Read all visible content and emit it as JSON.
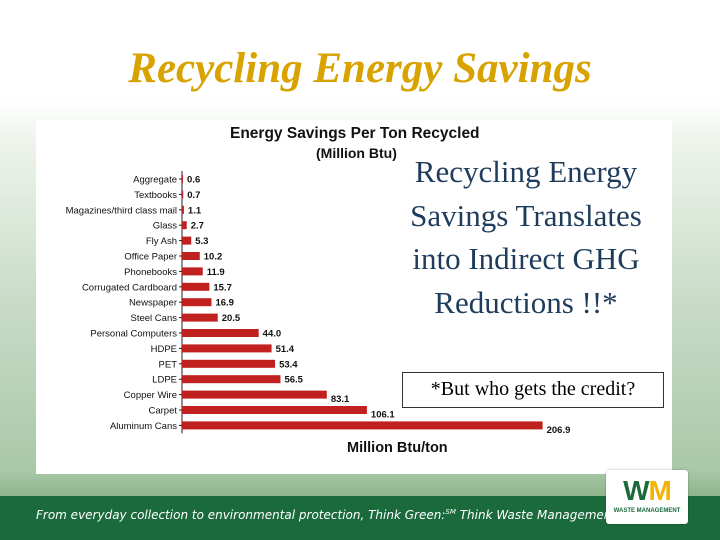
{
  "slide": {
    "title": "Recycling Energy Savings",
    "callout": "Recycling Energy Savings Translates into Indirect GHG Reductions !!*",
    "credit_note": "*But who gets the credit?",
    "footer_tagline_pre": "From everyday collection to environmental protection, Think Green:",
    "footer_tagline_sup": "SM",
    "footer_tagline_post": " Think Waste Management.",
    "logo_letters": "WM",
    "logo_subtext": "WASTE MANAGEMENT",
    "colors": {
      "title": "#d8a300",
      "callout": "#1f3c5c",
      "bar": "#c0211f",
      "footer": "#1a6a3c",
      "logo_w": "#1a6a3c",
      "logo_m": "#f2b400"
    }
  },
  "chart_data": {
    "type": "bar",
    "orientation": "horizontal",
    "title": "Energy Savings Per Ton Recycled",
    "subtitle": "(Million Btu)",
    "xlabel": "Million Btu/ton",
    "xlim": [
      0,
      210
    ],
    "categories": [
      "Aggregate",
      "Textbooks",
      "Magazines/third class mail",
      "Glass",
      "Fly Ash",
      "Office Paper",
      "Phonebooks",
      "Corrugated Cardboard",
      "Newspaper",
      "Steel Cans",
      "Personal Computers",
      "HDPE",
      "PET",
      "LDPE",
      "Copper Wire",
      "Carpet",
      "Aluminum Cans"
    ],
    "values": [
      0.6,
      0.7,
      1.1,
      2.7,
      5.3,
      10.2,
      11.9,
      15.7,
      16.9,
      20.5,
      44.0,
      51.4,
      53.4,
      56.5,
      83.1,
      106.1,
      206.9
    ],
    "value_labels": [
      "0.6",
      "0.7",
      "1.1",
      "2.7",
      "5.3",
      "10.2",
      "11.9",
      "15.7",
      "16.9",
      "20.5",
      "44.0",
      "51.4",
      "53.4",
      "56.5",
      "83.1",
      "106.1",
      "206.9"
    ]
  }
}
